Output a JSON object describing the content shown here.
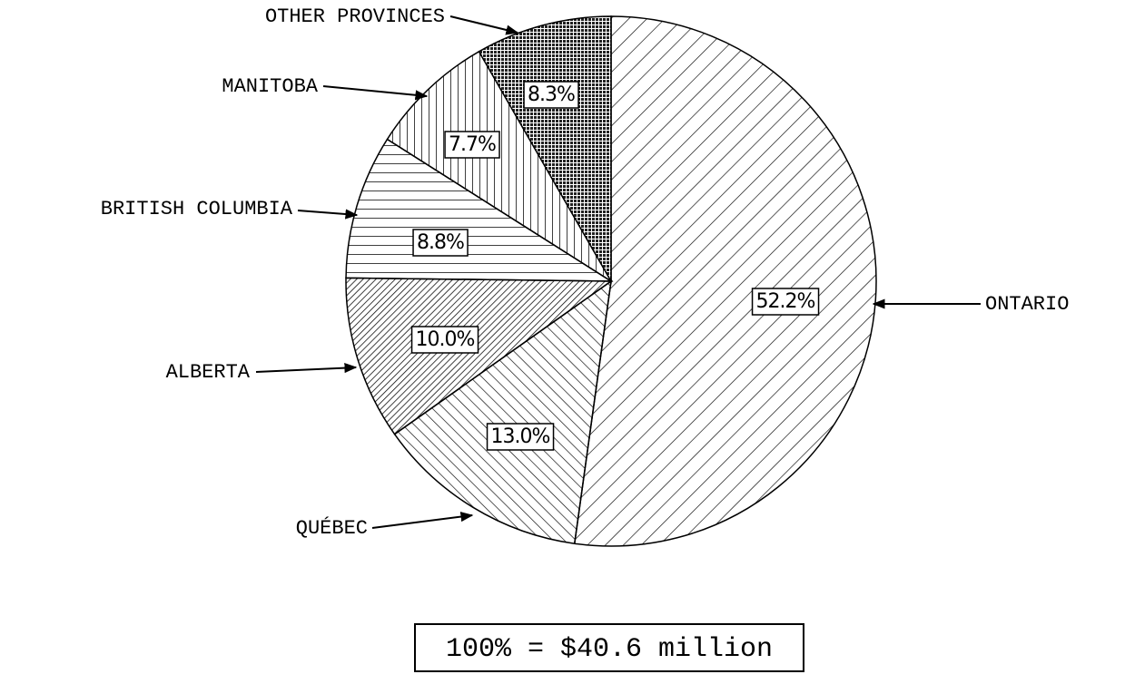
{
  "chart_data": {
    "type": "pie",
    "categories": [
      "ONTARIO",
      "QUÉBEC",
      "ALBERTA",
      "BRITISH COLUMBIA",
      "MANITOBA",
      "OTHER PROVINCES"
    ],
    "values": [
      52.2,
      13.0,
      10.0,
      8.8,
      7.7,
      8.3
    ],
    "value_labels": [
      "52.2%",
      "13.0%",
      "10.0%",
      "8.8%",
      "7.7%",
      "8.3%"
    ],
    "note": "100% = $40.6 million"
  }
}
